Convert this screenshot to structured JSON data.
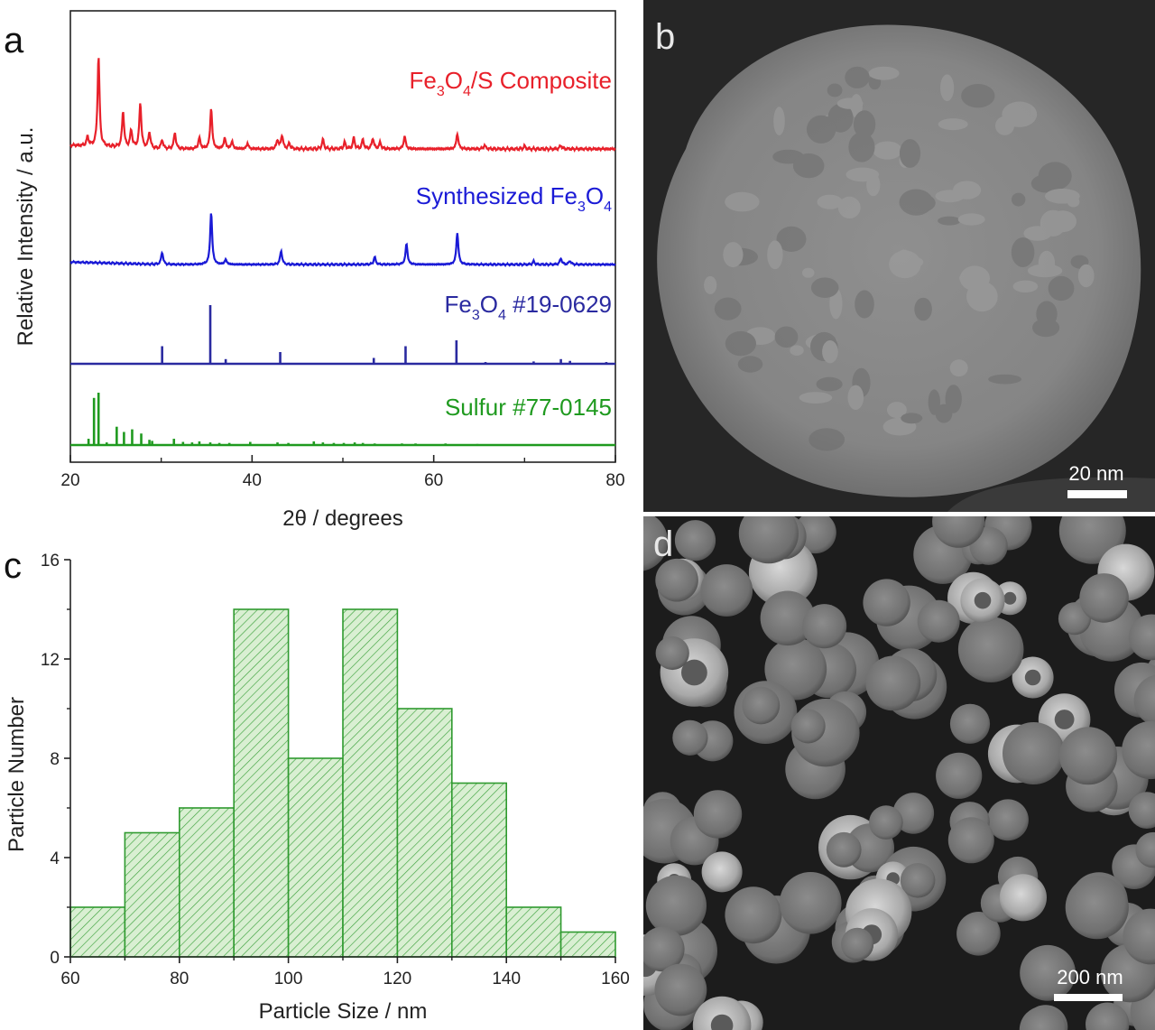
{
  "panel_labels": {
    "a": "a",
    "b": "b",
    "c": "c",
    "d": "d"
  },
  "micrographs": {
    "b": {
      "scale_bar": "20 nm"
    },
    "d": {
      "scale_bar": "200 nm"
    }
  },
  "colors": {
    "composite": "#e8202a",
    "synthesized": "#1a1ad6",
    "reference_fe3o4": "#2a2aa0",
    "sulfur": "#1f9a1f",
    "histogram_fill": "#d8efd0",
    "histogram_edge": "#2f9a2f",
    "axis": "#222222"
  },
  "chart_data": [
    {
      "type": "line",
      "panel": "a",
      "xlabel_prefix": "2",
      "xlabel_symbol": "θ",
      "xlabel_suffix": " / degrees",
      "ylabel": "Relative Intensity / a.u.",
      "xlim": [
        20,
        80
      ],
      "xticks": [
        "20",
        "40",
        "60",
        "80"
      ],
      "y_tick_labels": false,
      "series": [
        {
          "key": "composite",
          "label_parts": [
            "Fe",
            "3",
            "O",
            "4",
            "/S Composite"
          ],
          "style": "pattern",
          "peaks": [
            {
              "x": 21.9,
              "h": 0.1
            },
            {
              "x": 23.1,
              "h": 1.0
            },
            {
              "x": 25.8,
              "h": 0.4
            },
            {
              "x": 26.7,
              "h": 0.19
            },
            {
              "x": 27.7,
              "h": 0.5
            },
            {
              "x": 28.7,
              "h": 0.18
            },
            {
              "x": 30.1,
              "h": 0.1
            },
            {
              "x": 31.5,
              "h": 0.18
            },
            {
              "x": 34.2,
              "h": 0.12
            },
            {
              "x": 35.5,
              "h": 0.45
            },
            {
              "x": 37.0,
              "h": 0.12
            },
            {
              "x": 37.8,
              "h": 0.08
            },
            {
              "x": 39.5,
              "h": 0.06
            },
            {
              "x": 42.8,
              "h": 0.1
            },
            {
              "x": 43.3,
              "h": 0.15
            },
            {
              "x": 44.1,
              "h": 0.06
            },
            {
              "x": 47.8,
              "h": 0.1
            },
            {
              "x": 50.2,
              "h": 0.07
            },
            {
              "x": 51.2,
              "h": 0.12
            },
            {
              "x": 52.2,
              "h": 0.1
            },
            {
              "x": 53.3,
              "h": 0.12
            },
            {
              "x": 54.1,
              "h": 0.07
            },
            {
              "x": 56.8,
              "h": 0.14
            },
            {
              "x": 62.6,
              "h": 0.17
            },
            {
              "x": 65.6,
              "h": 0.04
            },
            {
              "x": 70.0,
              "h": 0.03
            },
            {
              "x": 74.0,
              "h": 0.04
            }
          ]
        },
        {
          "key": "synthesized",
          "label_parts": [
            "Synthesized Fe",
            "3",
            "O",
            "4",
            ""
          ],
          "style": "pattern",
          "peaks": [
            {
              "x": 30.1,
              "h": 0.2
            },
            {
              "x": 35.5,
              "h": 0.85
            },
            {
              "x": 37.1,
              "h": 0.08
            },
            {
              "x": 43.2,
              "h": 0.22
            },
            {
              "x": 53.5,
              "h": 0.12
            },
            {
              "x": 57.0,
              "h": 0.34
            },
            {
              "x": 62.6,
              "h": 0.52
            },
            {
              "x": 71.0,
              "h": 0.05
            },
            {
              "x": 74.0,
              "h": 0.1
            },
            {
              "x": 75.0,
              "h": 0.06
            }
          ]
        },
        {
          "key": "reference_fe3o4",
          "label_parts": [
            "Fe",
            "3",
            "O",
            "4",
            " #19-0629"
          ],
          "style": "sticks",
          "peaks": [
            {
              "x": 30.1,
              "h": 0.3
            },
            {
              "x": 35.4,
              "h": 1.0
            },
            {
              "x": 37.1,
              "h": 0.08
            },
            {
              "x": 43.1,
              "h": 0.2
            },
            {
              "x": 53.4,
              "h": 0.1
            },
            {
              "x": 56.9,
              "h": 0.3
            },
            {
              "x": 62.5,
              "h": 0.4
            },
            {
              "x": 65.7,
              "h": 0.03
            },
            {
              "x": 71.0,
              "h": 0.04
            },
            {
              "x": 74.0,
              "h": 0.08
            },
            {
              "x": 75.0,
              "h": 0.05
            },
            {
              "x": 79.0,
              "h": 0.03
            }
          ]
        },
        {
          "key": "sulfur",
          "label_parts": [
            "Sulfur #77-0145",
            "",
            "",
            "",
            ""
          ],
          "style": "sticks",
          "peaks": [
            {
              "x": 22.0,
              "h": 0.12
            },
            {
              "x": 22.6,
              "h": 0.9
            },
            {
              "x": 23.1,
              "h": 1.0
            },
            {
              "x": 24.0,
              "h": 0.05
            },
            {
              "x": 25.1,
              "h": 0.35
            },
            {
              "x": 25.9,
              "h": 0.25
            },
            {
              "x": 26.8,
              "h": 0.3
            },
            {
              "x": 27.8,
              "h": 0.22
            },
            {
              "x": 28.7,
              "h": 0.1
            },
            {
              "x": 29.0,
              "h": 0.08
            },
            {
              "x": 31.4,
              "h": 0.12
            },
            {
              "x": 32.4,
              "h": 0.06
            },
            {
              "x": 33.4,
              "h": 0.05
            },
            {
              "x": 34.2,
              "h": 0.07
            },
            {
              "x": 35.4,
              "h": 0.05
            },
            {
              "x": 36.4,
              "h": 0.04
            },
            {
              "x": 37.5,
              "h": 0.04
            },
            {
              "x": 39.8,
              "h": 0.06
            },
            {
              "x": 42.8,
              "h": 0.05
            },
            {
              "x": 44.0,
              "h": 0.04
            },
            {
              "x": 46.8,
              "h": 0.07
            },
            {
              "x": 47.8,
              "h": 0.05
            },
            {
              "x": 49.0,
              "h": 0.04
            },
            {
              "x": 50.1,
              "h": 0.04
            },
            {
              "x": 51.3,
              "h": 0.05
            },
            {
              "x": 52.2,
              "h": 0.04
            },
            {
              "x": 53.5,
              "h": 0.03
            },
            {
              "x": 56.5,
              "h": 0.03
            },
            {
              "x": 58.0,
              "h": 0.03
            },
            {
              "x": 61.3,
              "h": 0.03
            },
            {
              "x": 64.8,
              "h": 0.02
            }
          ]
        }
      ]
    },
    {
      "type": "bar",
      "panel": "c",
      "xlabel": "Particle Size / nm",
      "ylabel": "Particle Number",
      "xlim": [
        60,
        160
      ],
      "ylim": [
        0,
        16
      ],
      "xticks": [
        "60",
        "80",
        "100",
        "120",
        "140",
        "160"
      ],
      "yticks": [
        "0",
        "4",
        "8",
        "12",
        "16"
      ],
      "bins": [
        {
          "start": 60,
          "end": 70,
          "count": 2
        },
        {
          "start": 70,
          "end": 80,
          "count": 5
        },
        {
          "start": 80,
          "end": 90,
          "count": 6
        },
        {
          "start": 90,
          "end": 100,
          "count": 14
        },
        {
          "start": 100,
          "end": 110,
          "count": 8
        },
        {
          "start": 110,
          "end": 120,
          "count": 14
        },
        {
          "start": 120,
          "end": 130,
          "count": 10
        },
        {
          "start": 130,
          "end": 140,
          "count": 7
        },
        {
          "start": 140,
          "end": 150,
          "count": 2
        },
        {
          "start": 150,
          "end": 160,
          "count": 1
        }
      ]
    }
  ]
}
